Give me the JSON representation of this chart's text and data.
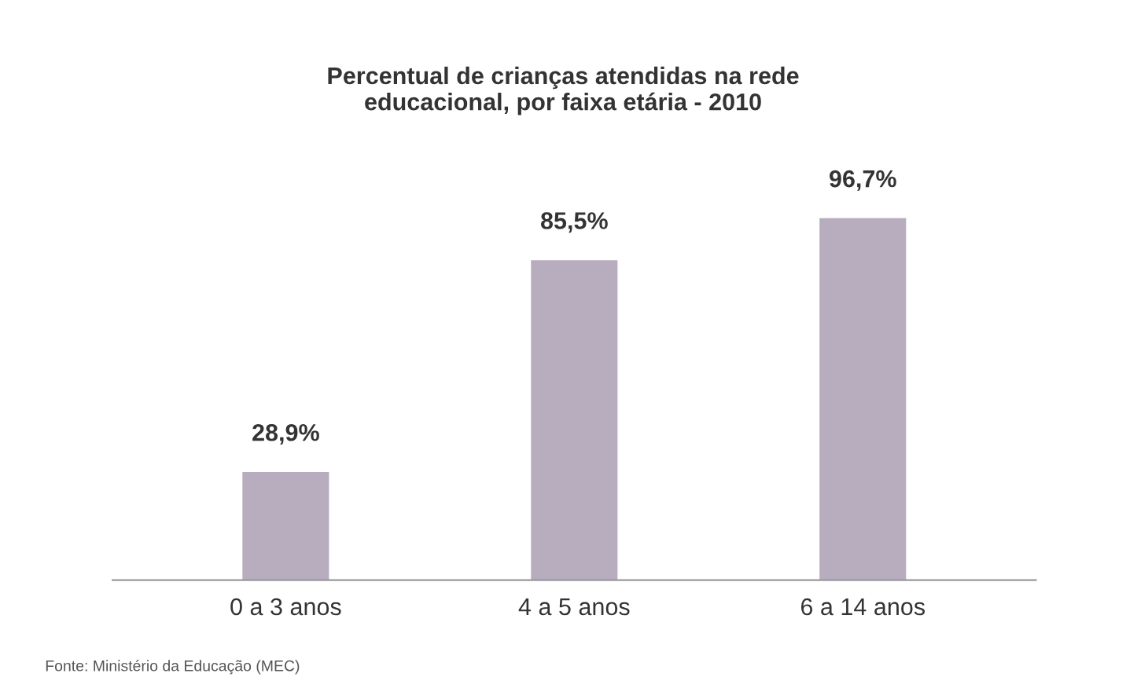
{
  "chart_data": {
    "type": "bar",
    "title": "Percentual de crianças atendidas na rede\neducacional, por faixa etária - 2010",
    "categories": [
      "0 a 3 anos",
      "4 a 5 anos",
      "6 a 14 anos"
    ],
    "values": [
      28.9,
      85.5,
      96.7
    ],
    "value_labels": [
      "28,9%",
      "85,5%",
      "96,7%"
    ],
    "color": "#b8adbf",
    "grid": false,
    "legend": false,
    "annotations": [
      "Fonte: Ministério da Educação (MEC)"
    ]
  }
}
